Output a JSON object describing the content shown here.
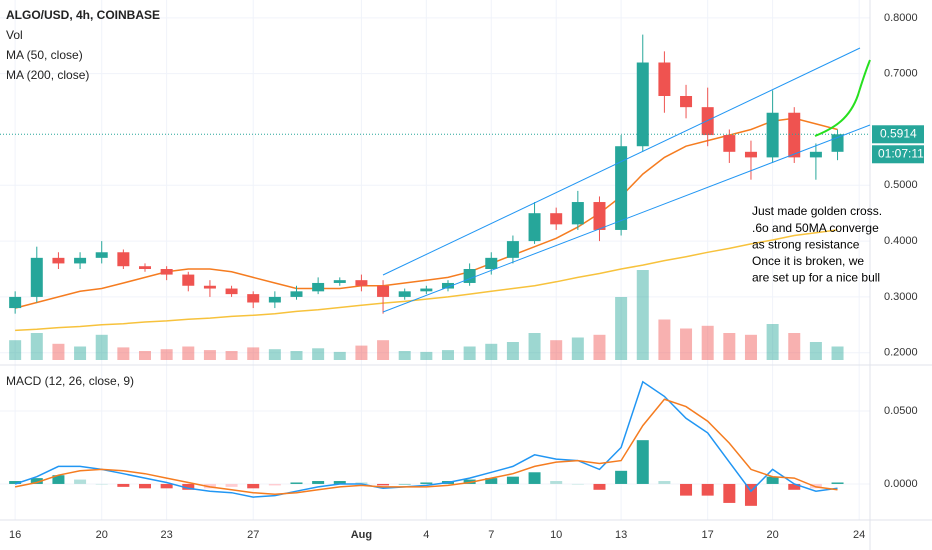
{
  "chart_data": [
    {
      "type": "candlestick",
      "title": "ALGO/USD, 4h, COINBASE",
      "x": [
        16,
        17,
        18,
        19,
        20,
        21,
        22,
        23,
        24,
        25,
        26,
        27,
        28,
        29,
        30,
        31,
        32,
        33,
        34,
        35,
        36,
        37,
        38,
        39,
        40,
        41,
        42,
        43,
        44,
        45,
        46,
        47,
        48,
        49,
        50,
        51,
        52,
        53,
        54
      ],
      "open": [
        0.28,
        0.3,
        0.37,
        0.36,
        0.37,
        0.38,
        0.355,
        0.35,
        0.34,
        0.32,
        0.315,
        0.305,
        0.29,
        0.3,
        0.31,
        0.325,
        0.33,
        0.32,
        0.3,
        0.31,
        0.315,
        0.325,
        0.35,
        0.37,
        0.4,
        0.45,
        0.43,
        0.47,
        0.42,
        0.57,
        0.72,
        0.66,
        0.64,
        0.59,
        0.56,
        0.55,
        0.63,
        0.55,
        0.56
      ],
      "high": [
        0.31,
        0.39,
        0.38,
        0.38,
        0.4,
        0.385,
        0.36,
        0.355,
        0.345,
        0.33,
        0.32,
        0.31,
        0.31,
        0.32,
        0.335,
        0.335,
        0.34,
        0.33,
        0.315,
        0.32,
        0.33,
        0.36,
        0.38,
        0.41,
        0.47,
        0.46,
        0.49,
        0.48,
        0.59,
        0.77,
        0.74,
        0.68,
        0.675,
        0.6,
        0.58,
        0.67,
        0.64,
        0.575,
        0.6
      ],
      "low": [
        0.27,
        0.29,
        0.35,
        0.35,
        0.36,
        0.35,
        0.345,
        0.33,
        0.31,
        0.3,
        0.3,
        0.28,
        0.28,
        0.295,
        0.305,
        0.32,
        0.31,
        0.27,
        0.295,
        0.305,
        0.31,
        0.32,
        0.34,
        0.36,
        0.395,
        0.42,
        0.42,
        0.4,
        0.41,
        0.56,
        0.63,
        0.62,
        0.57,
        0.54,
        0.51,
        0.54,
        0.54,
        0.51,
        0.545
      ],
      "close": [
        0.3,
        0.37,
        0.36,
        0.37,
        0.38,
        0.355,
        0.35,
        0.34,
        0.32,
        0.315,
        0.305,
        0.29,
        0.3,
        0.31,
        0.325,
        0.33,
        0.32,
        0.3,
        0.31,
        0.315,
        0.325,
        0.35,
        0.37,
        0.4,
        0.45,
        0.43,
        0.47,
        0.42,
        0.57,
        0.72,
        0.66,
        0.64,
        0.59,
        0.56,
        0.55,
        0.63,
        0.55,
        0.56,
        0.5914
      ],
      "up_color": "#26a69a",
      "down_color": "#ef5350",
      "volume": {
        "name": "Vol",
        "values": [
          22,
          30,
          18,
          15,
          28,
          14,
          10,
          12,
          15,
          11,
          10,
          14,
          12,
          10,
          13,
          9,
          16,
          22,
          10,
          9,
          11,
          15,
          18,
          20,
          30,
          22,
          25,
          28,
          70,
          100,
          45,
          35,
          38,
          30,
          28,
          40,
          30,
          20,
          15
        ]
      },
      "series": [
        {
          "name": "MA (50, close)",
          "color": "#f57c20",
          "values": [
            0.28,
            0.29,
            0.3,
            0.31,
            0.315,
            0.325,
            0.335,
            0.345,
            0.35,
            0.35,
            0.345,
            0.335,
            0.325,
            0.315,
            0.315,
            0.315,
            0.32,
            0.32,
            0.325,
            0.33,
            0.335,
            0.345,
            0.36,
            0.375,
            0.39,
            0.405,
            0.425,
            0.45,
            0.48,
            0.52,
            0.55,
            0.57,
            0.58,
            0.59,
            0.6,
            0.615,
            0.62,
            0.61,
            0.6
          ]
        },
        {
          "name": "MA (200, close)",
          "color": "#f7c23c",
          "values": [
            0.24,
            0.242,
            0.245,
            0.247,
            0.25,
            0.252,
            0.255,
            0.257,
            0.26,
            0.262,
            0.265,
            0.267,
            0.27,
            0.274,
            0.277,
            0.281,
            0.285,
            0.289,
            0.292,
            0.296,
            0.3,
            0.305,
            0.31,
            0.315,
            0.32,
            0.327,
            0.335,
            0.342,
            0.35,
            0.357,
            0.365,
            0.372,
            0.38,
            0.387,
            0.395,
            0.402,
            0.41,
            0.415,
            0.42
          ]
        }
      ],
      "last_price": 0.5914,
      "countdown": "01:07:11",
      "annotation": [
        "Just made golden cross.",
        ".6o and 50MA converge",
        "as strong resistance",
        "Once it is broken, we",
        "are set up for a nice bull"
      ],
      "xlim": [
        15.3,
        55.5
      ],
      "ylim": [
        0.178,
        0.832
      ],
      "yticks": [
        {
          "value": 0.2,
          "label": "0.2000"
        },
        {
          "value": 0.3,
          "label": "0.3000"
        },
        {
          "value": 0.4,
          "label": "0.4000"
        },
        {
          "value": 0.5,
          "label": "0.5000"
        },
        {
          "value": 0.7,
          "label": "0.7000"
        },
        {
          "value": 0.8,
          "label": "0.8000"
        }
      ],
      "grid": true
    },
    {
      "type": "line",
      "title": "MACD (12, 26, close, 9)",
      "x": [
        16,
        17,
        18,
        19,
        20,
        21,
        22,
        23,
        24,
        25,
        26,
        27,
        28,
        29,
        30,
        31,
        32,
        33,
        34,
        35,
        36,
        37,
        38,
        39,
        40,
        41,
        42,
        43,
        44,
        45,
        46,
        47,
        48,
        49,
        50,
        51,
        52,
        53,
        54
      ],
      "series": [
        {
          "color": "#2196f3",
          "values": [
            0.0,
            0.005,
            0.012,
            0.012,
            0.01,
            0.007,
            0.004,
            0.001,
            -0.003,
            -0.005,
            -0.006,
            -0.009,
            -0.008,
            -0.005,
            -0.002,
            0.0,
            0.0,
            -0.003,
            -0.002,
            -0.001,
            0.001,
            0.004,
            0.008,
            0.012,
            0.02,
            0.017,
            0.016,
            0.01,
            0.025,
            0.07,
            0.06,
            0.045,
            0.035,
            0.015,
            -0.005,
            0.01,
            0.0,
            -0.005,
            -0.003
          ]
        },
        {
          "color": "#f57c20",
          "values": [
            -0.002,
            0.001,
            0.006,
            0.009,
            0.01,
            0.009,
            0.007,
            0.004,
            0.001,
            -0.002,
            -0.004,
            -0.006,
            -0.007,
            -0.006,
            -0.004,
            -0.002,
            -0.001,
            -0.002,
            -0.002,
            -0.002,
            -0.001,
            0.001,
            0.004,
            0.007,
            0.012,
            0.015,
            0.016,
            0.014,
            0.016,
            0.04,
            0.058,
            0.053,
            0.043,
            0.028,
            0.01,
            0.005,
            0.004,
            -0.002,
            -0.004
          ]
        }
      ],
      "histogram": {
        "values": [
          0.002,
          0.004,
          0.006,
          0.003,
          0.0,
          -0.002,
          -0.003,
          -0.003,
          -0.004,
          -0.003,
          -0.002,
          -0.003,
          -0.001,
          0.001,
          0.002,
          0.002,
          0.001,
          -0.001,
          0.0,
          0.001,
          0.002,
          0.003,
          0.004,
          0.005,
          0.008,
          0.002,
          0.0,
          -0.004,
          0.009,
          0.03,
          0.002,
          -0.008,
          -0.008,
          -0.013,
          -0.015,
          0.005,
          -0.004,
          -0.003,
          0.001
        ],
        "colors": {
          "pos_grow": "#26a69a",
          "pos_fall": "#b2dfdb",
          "neg_grow": "#ef5350",
          "neg_fall": "#ffcdd2"
        }
      },
      "xlim": [
        15.3,
        55.5
      ],
      "ylim": [
        -0.0247,
        0.0815
      ],
      "yticks": [
        {
          "value": 0.0,
          "label": "0.0000"
        },
        {
          "value": 0.05,
          "label": "0.0500"
        }
      ],
      "xticks": [
        16,
        20,
        23,
        27,
        {
          "value": 32,
          "label": "Aug"
        },
        {
          "value": 35,
          "label": "4"
        },
        {
          "value": 38,
          "label": "7"
        },
        {
          "value": 41,
          "label": "10"
        },
        {
          "value": 44,
          "label": "13"
        },
        {
          "value": 48,
          "label": "17"
        },
        {
          "value": 51,
          "label": "20"
        },
        {
          "value": 55,
          "label": "24"
        }
      ],
      "grid": true
    }
  ]
}
